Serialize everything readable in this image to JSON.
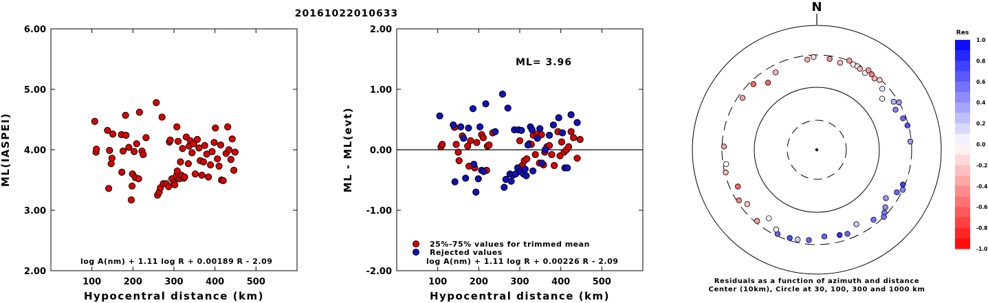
{
  "title": "20161022010633",
  "chart_data": [
    {
      "type": "scatter",
      "xlabel": "Hypocentral distance (km)",
      "ylabel": "ML(IASPEI)",
      "xlim": [
        0,
        600
      ],
      "ylim": [
        2.0,
        6.0
      ],
      "xticks": [
        "100",
        "200",
        "300",
        "400",
        "500"
      ],
      "yticks": [
        "2.00",
        "3.00",
        "4.00",
        "5.00",
        "6.00"
      ],
      "formula": "log A(nm) + 1.11 log R + 0.00189 R - 2.09",
      "series": [
        {
          "color": "#dd0000",
          "points": [
            [
              107,
              4.47
            ],
            [
              110,
              3.96
            ],
            [
              111,
              4.01
            ],
            [
              138,
              4.32
            ],
            [
              141,
              3.36
            ],
            [
              143,
              3.99
            ],
            [
              147,
              3.77
            ],
            [
              149,
              3.86
            ],
            [
              151,
              4.26
            ],
            [
              172,
              4.25
            ],
            [
              173,
              3.63
            ],
            [
              176,
              3.98
            ],
            [
              182,
              4.57
            ],
            [
              183,
              4.24
            ],
            [
              190,
              4.04
            ],
            [
              196,
              3.17
            ],
            [
              198,
              3.4
            ],
            [
              199,
              3.6
            ],
            [
              203,
              3.97
            ],
            [
              206,
              3.54
            ],
            [
              209,
              4.1
            ],
            [
              214,
              3.52
            ],
            [
              216,
              4.62
            ],
            [
              222,
              3.98
            ],
            [
              225,
              3.92
            ],
            [
              232,
              4.2
            ],
            [
              257,
              4.78
            ],
            [
              260,
              3.25
            ],
            [
              264,
              3.3
            ],
            [
              267,
              3.37
            ],
            [
              271,
              4.54
            ],
            [
              274,
              3.44
            ],
            [
              281,
              3.44
            ],
            [
              287,
              3.39
            ],
            [
              289,
              4.13
            ],
            [
              291,
              4.16
            ],
            [
              295,
              3.52
            ],
            [
              300,
              3.46
            ],
            [
              302,
              3.42
            ],
            [
              306,
              3.57
            ],
            [
              307,
              4.38
            ],
            [
              308,
              3.65
            ],
            [
              310,
              4.14
            ],
            [
              313,
              3.52
            ],
            [
              316,
              3.8
            ],
            [
              318,
              3.58
            ],
            [
              321,
              4.02
            ],
            [
              324,
              3.53
            ],
            [
              326,
              3.55
            ],
            [
              330,
              4.21
            ],
            [
              335,
              3.77
            ],
            [
              337,
              4.06
            ],
            [
              340,
              4.15
            ],
            [
              344,
              3.95
            ],
            [
              348,
              4.1
            ],
            [
              352,
              3.6
            ],
            [
              357,
              4.17
            ],
            [
              361,
              4.03
            ],
            [
              364,
              3.82
            ],
            [
              368,
              3.58
            ],
            [
              372,
              3.8
            ],
            [
              375,
              4.07
            ],
            [
              380,
              3.93
            ],
            [
              384,
              3.55
            ],
            [
              389,
              3.75
            ],
            [
              393,
              3.97
            ],
            [
              398,
              4.12
            ],
            [
              401,
              4.36
            ],
            [
              406,
              3.85
            ],
            [
              410,
              3.73
            ],
            [
              414,
              4.08
            ],
            [
              416,
              3.5
            ],
            [
              420,
              3.49
            ],
            [
              427,
              3.94
            ],
            [
              431,
              4.38
            ],
            [
              434,
              4.0
            ],
            [
              439,
              3.84
            ],
            [
              442,
              4.18
            ],
            [
              446,
              3.66
            ],
            [
              449,
              3.96
            ]
          ]
        }
      ]
    },
    {
      "type": "scatter",
      "xlabel": "Hypocentral distance (km)",
      "ylabel": "ML - ML(evt)",
      "xlim": [
        0,
        600
      ],
      "ylim": [
        -2.0,
        2.0
      ],
      "xticks": [
        "100",
        "200",
        "300",
        "400",
        "500"
      ],
      "yticks": [
        "-2.00",
        "-1.00",
        "0.00",
        "1.00",
        "2.00"
      ],
      "ml_label": "ML= 3.96",
      "formula": "log A(nm) + 1.11 log R + 0.00226 R - 2.09",
      "legend": [
        "25%-75% values for trimmed mean",
        "Rejected values"
      ],
      "series": [
        {
          "name": "25%-75% values for trimmed mean",
          "color": "#dd0000",
          "points": [
            [
              108,
              0.05
            ],
            [
              111,
              0.09
            ],
            [
              141,
              0.37
            ],
            [
              145,
              0.09
            ],
            [
              150,
              -0.04
            ],
            [
              152,
              -0.18
            ],
            [
              160,
              0.23
            ],
            [
              173,
              0.06
            ],
            [
              176,
              -0.27
            ],
            [
              180,
              0.15
            ],
            [
              190,
              -0.3
            ],
            [
              195,
              0.12
            ],
            [
              207,
              0.25
            ],
            [
              211,
              0.2
            ],
            [
              219,
              -0.34
            ],
            [
              221,
              0.06
            ],
            [
              225,
              0.08
            ],
            [
              234,
              0.28
            ],
            [
              300,
              0.15
            ],
            [
              306,
              -0.26
            ],
            [
              311,
              -0.18
            ],
            [
              317,
              -0.15
            ],
            [
              323,
              0.1
            ],
            [
              328,
              0.09
            ],
            [
              333,
              0.24
            ],
            [
              338,
              -0.08
            ],
            [
              343,
              0.26
            ],
            [
              348,
              -0.22
            ],
            [
              353,
              0.25
            ],
            [
              358,
              -0.25
            ],
            [
              361,
              -0.04
            ],
            [
              366,
              0.05
            ],
            [
              372,
              0.07
            ],
            [
              378,
              -0.08
            ],
            [
              384,
              -0.26
            ],
            [
              393,
              0.3
            ],
            [
              398,
              -0.1
            ],
            [
              402,
              0.13
            ],
            [
              408,
              -0.04
            ],
            [
              414,
              0.0
            ],
            [
              419,
              0.05
            ],
            [
              425,
              0.3
            ],
            [
              431,
              0.2
            ],
            [
              440,
              -0.14
            ],
            [
              447,
              0.17
            ]
          ]
        },
        {
          "name": "Rejected values",
          "color": "#1010c0",
          "points": [
            [
              105,
              0.56
            ],
            [
              138,
              0.41
            ],
            [
              142,
              -0.53
            ],
            [
              156,
              0.38
            ],
            [
              163,
              0.19
            ],
            [
              168,
              -0.47
            ],
            [
              175,
              0.36
            ],
            [
              186,
              0.68
            ],
            [
              188,
              -0.24
            ],
            [
              193,
              -0.7
            ],
            [
              199,
              -0.48
            ],
            [
              203,
              0.38
            ],
            [
              207,
              -0.34
            ],
            [
              212,
              -0.36
            ],
            [
              217,
              0.76
            ],
            [
              240,
              0.3
            ],
            [
              258,
              0.92
            ],
            [
              262,
              -0.62
            ],
            [
              266,
              -0.49
            ],
            [
              271,
              0.69
            ],
            [
              276,
              -0.4
            ],
            [
              279,
              -0.52
            ],
            [
              283,
              -0.42
            ],
            [
              287,
              0.33
            ],
            [
              290,
              -0.4
            ],
            [
              295,
              -0.3
            ],
            [
              297,
              0.33
            ],
            [
              302,
              -0.36
            ],
            [
              304,
              0.32
            ],
            [
              309,
              -0.4
            ],
            [
              313,
              -0.32
            ],
            [
              316,
              -0.43
            ],
            [
              320,
              0.08
            ],
            [
              326,
              0.38
            ],
            [
              330,
              0.33
            ],
            [
              332,
              -0.35
            ],
            [
              343,
              0.19
            ],
            [
              349,
              0.35
            ],
            [
              354,
              -0.22
            ],
            [
              362,
              0.0
            ],
            [
              372,
              0.24
            ],
            [
              382,
              0.41
            ],
            [
              395,
              0.53
            ],
            [
              404,
              0.28
            ],
            [
              410,
              -0.3
            ],
            [
              416,
              -0.3
            ],
            [
              425,
              0.58
            ],
            [
              440,
              0.45
            ]
          ]
        }
      ]
    },
    {
      "type": "scatter",
      "kind": "polar residual map",
      "north_label": "N",
      "caption_line1": "Residuals as a function of azimuth and distance",
      "caption_line2": "Center (10km), Circle at 30, 100, 300 and 1000 km",
      "colorbar_label": "Res",
      "colorbar_ticks": [
        "1.0",
        "0.8",
        "0.6",
        "0.4",
        "0.2",
        "0.0",
        "-0.2",
        "-0.4",
        "-0.6",
        "-0.8",
        "-1.0"
      ],
      "colorbar_range": [
        -1.0,
        1.0
      ],
      "points_az_km_res": [
        [
          354,
          260,
          -0.35
        ],
        [
          358,
          280,
          -0.15
        ],
        [
          8,
          270,
          -0.45
        ],
        [
          15,
          255,
          -0.25
        ],
        [
          20,
          300,
          -0.4
        ],
        [
          23,
          280,
          -0.1
        ],
        [
          26,
          280,
          0.0
        ],
        [
          28,
          270,
          -0.3
        ],
        [
          32,
          260,
          0.05
        ],
        [
          33,
          300,
          -0.4
        ],
        [
          36,
          285,
          -0.5
        ],
        [
          39,
          270,
          -0.3
        ],
        [
          42,
          290,
          -0.2
        ],
        [
          47,
          250,
          0.1
        ],
        [
          52,
          200,
          0.05
        ],
        [
          58,
          260,
          0.3
        ],
        [
          60,
          300,
          0.4
        ],
        [
          63,
          240,
          0.5
        ],
        [
          70,
          270,
          0.6
        ],
        [
          75,
          290,
          0.7
        ],
        [
          85,
          290,
          0.4
        ],
        [
          115,
          300,
          0.5
        ],
        [
          112,
          280,
          0.75
        ],
        [
          118,
          260,
          0.6
        ],
        [
          125,
          210,
          0.4
        ],
        [
          130,
          250,
          0.45
        ],
        [
          133,
          275,
          0.5
        ],
        [
          135,
          300,
          0.55
        ],
        [
          141,
          255,
          0.55
        ],
        [
          152,
          210,
          0.2
        ],
        [
          160,
          250,
          0.6
        ],
        [
          165,
          240,
          0.8
        ],
        [
          175,
          230,
          0.6
        ],
        [
          185,
          260,
          0.6
        ],
        [
          192,
          270,
          0.2
        ],
        [
          197,
          275,
          0.7
        ],
        [
          205,
          280,
          0.6
        ],
        [
          207,
          250,
          0.0
        ],
        [
          215,
          205,
          0.0
        ],
        [
          220,
          280,
          -0.4
        ],
        [
          232,
          240,
          -0.25
        ],
        [
          237,
          280,
          -0.5
        ],
        [
          245,
          230,
          -0.6
        ],
        [
          256,
          290,
          -0.3
        ],
        [
          261,
          270,
          0.0
        ],
        [
          272,
          280,
          -0.4
        ],
        [
          305,
          260,
          -0.35
        ],
        [
          316,
          265,
          -0.6
        ],
        [
          324,
          200,
          -0.6
        ],
        [
          332,
          235,
          -0.3
        ]
      ]
    }
  ]
}
